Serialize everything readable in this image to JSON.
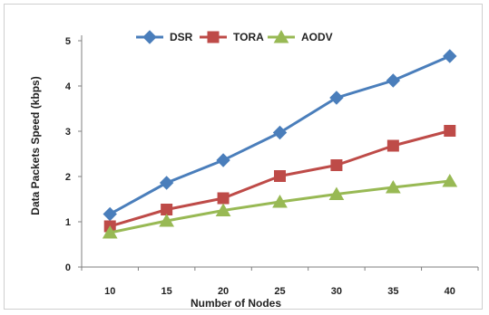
{
  "chart_data": {
    "type": "line",
    "title": "",
    "xlabel": "Number of Nodes",
    "ylabel": "Data Packets Speed (kbps)",
    "x": [
      10,
      15,
      20,
      25,
      30,
      35,
      40
    ],
    "ylim": [
      0,
      5
    ],
    "yticks": [
      0,
      1,
      2,
      3,
      4,
      5
    ],
    "grid": false,
    "legend_position": "top-center",
    "series": [
      {
        "name": "DSR",
        "color": "#4A7EBB",
        "marker": "diamond",
        "values": [
          1.17,
          1.86,
          2.36,
          2.97,
          3.74,
          4.12,
          4.66
        ]
      },
      {
        "name": "TORA",
        "color": "#BE4B48",
        "marker": "square",
        "values": [
          0.9,
          1.27,
          1.52,
          2.01,
          2.25,
          2.68,
          3.01
        ]
      },
      {
        "name": "AODV",
        "color": "#98B954",
        "marker": "triangle",
        "values": [
          0.76,
          1.02,
          1.25,
          1.44,
          1.61,
          1.76,
          1.9
        ]
      }
    ]
  }
}
